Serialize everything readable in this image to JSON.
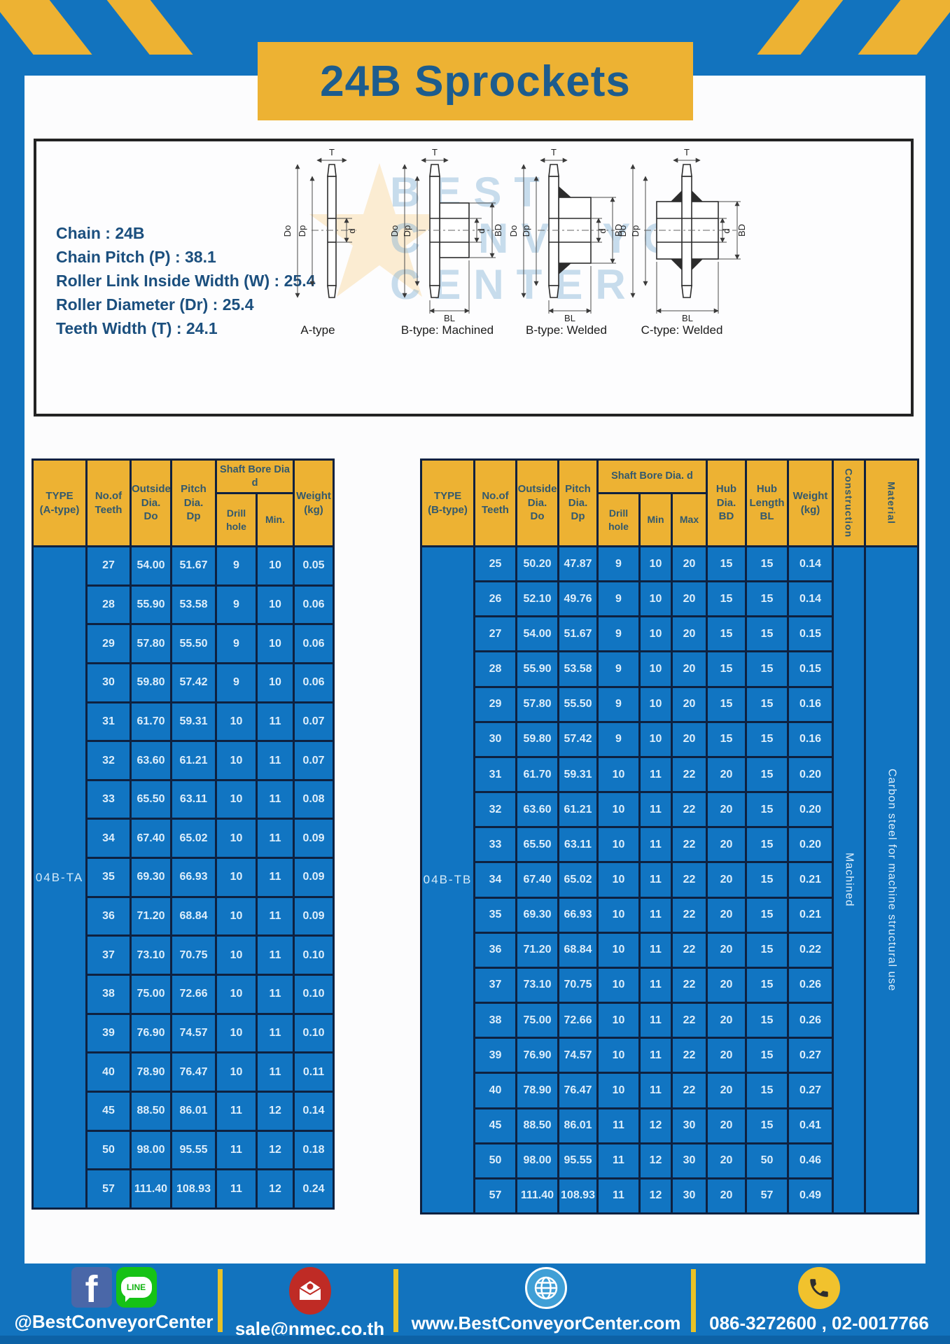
{
  "title": "24B Sprockets",
  "specs": [
    "Chain  :  24B",
    "Chain Pitch (P)  :  38.1",
    "Roller Link Inside Width (W)  :  25.4",
    "Roller Diameter (Dr)  :  25.4",
    "Teeth Width (T)  :  24.1"
  ],
  "watermark": {
    "line1": "BEST",
    "line2": "CONVEYOR",
    "line3": "CENTER"
  },
  "diagrams": {
    "captions": [
      "A-type",
      "B-type: Machined",
      "B-type: Welded",
      "C-type: Welded"
    ],
    "dims": {
      "t": "T",
      "do": "Do",
      "dp": "Dp",
      "d": "d",
      "bd": "BD",
      "bl": "BL"
    }
  },
  "table_a": {
    "type_label": "04B-TA",
    "headers": {
      "type": "TYPE\n(A-type)",
      "teeth": "No.of\nTeeth",
      "outside": "Outside\nDia.\nDo",
      "pitch": "Pitch Dia.\nDp",
      "shaft_group": "Shaft Bore Dia d",
      "drill": "Drill hole",
      "min": "Min.",
      "weight": "Weight\n(kg)"
    },
    "rows": [
      [
        "27",
        "54.00",
        "51.67",
        "9",
        "10",
        "0.05"
      ],
      [
        "28",
        "55.90",
        "53.58",
        "9",
        "10",
        "0.06"
      ],
      [
        "29",
        "57.80",
        "55.50",
        "9",
        "10",
        "0.06"
      ],
      [
        "30",
        "59.80",
        "57.42",
        "9",
        "10",
        "0.06"
      ],
      [
        "31",
        "61.70",
        "59.31",
        "10",
        "11",
        "0.07"
      ],
      [
        "32",
        "63.60",
        "61.21",
        "10",
        "11",
        "0.07"
      ],
      [
        "33",
        "65.50",
        "63.11",
        "10",
        "11",
        "0.08"
      ],
      [
        "34",
        "67.40",
        "65.02",
        "10",
        "11",
        "0.09"
      ],
      [
        "35",
        "69.30",
        "66.93",
        "10",
        "11",
        "0.09"
      ],
      [
        "36",
        "71.20",
        "68.84",
        "10",
        "11",
        "0.09"
      ],
      [
        "37",
        "73.10",
        "70.75",
        "10",
        "11",
        "0.10"
      ],
      [
        "38",
        "75.00",
        "72.66",
        "10",
        "11",
        "0.10"
      ],
      [
        "39",
        "76.90",
        "74.57",
        "10",
        "11",
        "0.10"
      ],
      [
        "40",
        "78.90",
        "76.47",
        "10",
        "11",
        "0.11"
      ],
      [
        "45",
        "88.50",
        "86.01",
        "11",
        "12",
        "0.14"
      ],
      [
        "50",
        "98.00",
        "95.55",
        "11",
        "12",
        "0.18"
      ],
      [
        "57",
        "111.40",
        "108.93",
        "11",
        "12",
        "0.24"
      ]
    ]
  },
  "table_b": {
    "type_label": "04B-TB",
    "construction": "Machined",
    "material": "Carbon steel for machine structural use",
    "headers": {
      "type": "TYPE\n(B-type)",
      "teeth": "No.of\nTeeth",
      "outside": "Outside\nDia.\nDo",
      "pitch": "Pitch\nDia.\nDp",
      "shaft_group": "Shaft Bore Dia. d",
      "drill": "Drill hole",
      "min": "Min",
      "max": "Max",
      "hub_dia": "Hub\nDia.\nBD",
      "hub_len": "Hub\nLength\nBL",
      "weight": "Weight\n(kg)",
      "construction": "Construction",
      "material": "Material"
    },
    "rows": [
      [
        "25",
        "50.20",
        "47.87",
        "9",
        "10",
        "20",
        "15",
        "15",
        "0.14"
      ],
      [
        "26",
        "52.10",
        "49.76",
        "9",
        "10",
        "20",
        "15",
        "15",
        "0.14"
      ],
      [
        "27",
        "54.00",
        "51.67",
        "9",
        "10",
        "20",
        "15",
        "15",
        "0.15"
      ],
      [
        "28",
        "55.90",
        "53.58",
        "9",
        "10",
        "20",
        "15",
        "15",
        "0.15"
      ],
      [
        "29",
        "57.80",
        "55.50",
        "9",
        "10",
        "20",
        "15",
        "15",
        "0.16"
      ],
      [
        "30",
        "59.80",
        "57.42",
        "9",
        "10",
        "20",
        "15",
        "15",
        "0.16"
      ],
      [
        "31",
        "61.70",
        "59.31",
        "10",
        "11",
        "22",
        "20",
        "15",
        "0.20"
      ],
      [
        "32",
        "63.60",
        "61.21",
        "10",
        "11",
        "22",
        "20",
        "15",
        "0.20"
      ],
      [
        "33",
        "65.50",
        "63.11",
        "10",
        "11",
        "22",
        "20",
        "15",
        "0.20"
      ],
      [
        "34",
        "67.40",
        "65.02",
        "10",
        "11",
        "22",
        "20",
        "15",
        "0.21"
      ],
      [
        "35",
        "69.30",
        "66.93",
        "10",
        "11",
        "22",
        "20",
        "15",
        "0.21"
      ],
      [
        "36",
        "71.20",
        "68.84",
        "10",
        "11",
        "22",
        "20",
        "15",
        "0.22"
      ],
      [
        "37",
        "73.10",
        "70.75",
        "10",
        "11",
        "22",
        "20",
        "15",
        "0.26"
      ],
      [
        "38",
        "75.00",
        "72.66",
        "10",
        "11",
        "22",
        "20",
        "15",
        "0.26"
      ],
      [
        "39",
        "76.90",
        "74.57",
        "10",
        "11",
        "22",
        "20",
        "15",
        "0.27"
      ],
      [
        "40",
        "78.90",
        "76.47",
        "10",
        "11",
        "22",
        "20",
        "15",
        "0.27"
      ],
      [
        "45",
        "88.50",
        "86.01",
        "11",
        "12",
        "30",
        "20",
        "15",
        "0.41"
      ],
      [
        "50",
        "98.00",
        "95.55",
        "11",
        "12",
        "30",
        "20",
        "50",
        "0.46"
      ],
      [
        "57",
        "111.40",
        "108.93",
        "11",
        "12",
        "30",
        "20",
        "57",
        "0.49"
      ]
    ]
  },
  "footer": {
    "facebook_glyph": "f",
    "line_label": "LINE",
    "social_handle": "@BestConveyorCenter",
    "email": "sale@nmec.co.th",
    "website": "www.BestConveyorCenter.com",
    "phone": "086-3272600 , 02-0017766"
  },
  "colors": {
    "page_blue": "#1273be",
    "accent_yellow": "#edb233",
    "cell_blue": "#1175c2",
    "grid_navy": "#0e2140",
    "title_blue": "#1d5c8d"
  }
}
